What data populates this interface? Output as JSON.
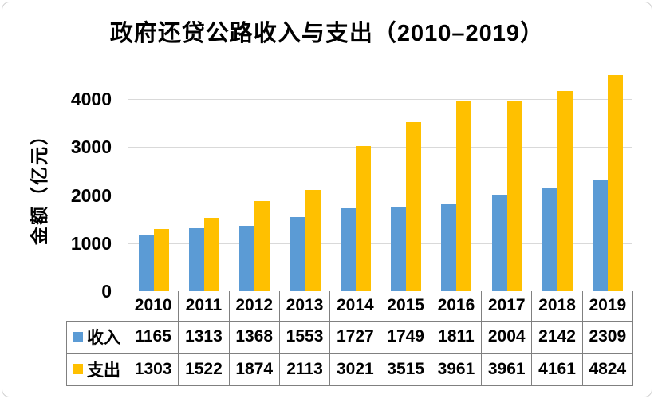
{
  "title": "政府还贷公路收入与支出（2010–2019）",
  "y_axis": {
    "title": "金额（亿元）",
    "tick_labels": [
      "0",
      "1000",
      "2000",
      "3000",
      "4000"
    ]
  },
  "chart_data": {
    "type": "bar",
    "title": "政府还贷公路收入与支出（2010–2019）",
    "categories": [
      "2010",
      "2011",
      "2012",
      "2013",
      "2014",
      "2015",
      "2016",
      "2017",
      "2018",
      "2019"
    ],
    "series": [
      {
        "name": "收入",
        "key": "income",
        "color": "#5B9BD5",
        "values": [
          1165,
          1313,
          1368,
          1553,
          1727,
          1749,
          1811,
          2004,
          2142,
          2309
        ]
      },
      {
        "name": "支出",
        "key": "expense",
        "color": "#FFC000",
        "values": [
          1303,
          1522,
          1874,
          2113,
          3021,
          3515,
          3961,
          3961,
          4161,
          4824
        ]
      }
    ],
    "xlabel": "",
    "ylabel": "金额（亿元）",
    "ylim": [
      0,
      4500
    ],
    "y_major_unit": 1000,
    "grid": true,
    "legend_position": "data-table-left",
    "data_table_shown": true
  },
  "colors": {
    "income_series": "#5B9BD5",
    "expense_series": "#FFC000",
    "gridline": "#D9D9D9",
    "axis_line": "#808080",
    "table_border": "#808080",
    "text": "#000000",
    "background": "#FFFFFF",
    "frame_border": "#CFCFCF"
  }
}
